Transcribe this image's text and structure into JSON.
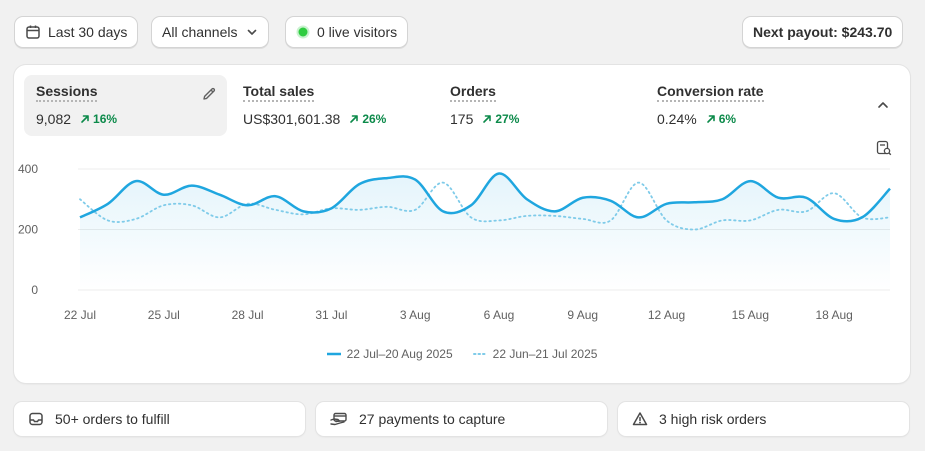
{
  "toolbar": {
    "date_range": "Last 30 days",
    "channels": "All channels",
    "live_visitors": "0 live visitors",
    "payout": "Next payout: $243.70"
  },
  "metrics": [
    {
      "label": "Sessions",
      "value": "9,082",
      "delta": "16%"
    },
    {
      "label": "Total sales",
      "value": "US$301,601.38",
      "delta": "26%"
    },
    {
      "label": "Orders",
      "value": "175",
      "delta": "27%"
    },
    {
      "label": "Conversion rate",
      "value": "0.24%",
      "delta": "6%"
    }
  ],
  "chart_data": {
    "type": "line",
    "y_ticks": [
      0,
      200,
      400
    ],
    "x_ticks": [
      "22 Jul",
      "25 Jul",
      "28 Jul",
      "31 Jul",
      "3 Aug",
      "6 Aug",
      "9 Aug",
      "12 Aug",
      "15 Aug",
      "18 Aug"
    ],
    "ylim": [
      0,
      400
    ],
    "series": [
      {
        "name": "22 Jul–20 Aug 2025",
        "style": "solid",
        "color": "#1fa6df",
        "values": [
          240,
          285,
          360,
          315,
          345,
          315,
          280,
          310,
          260,
          270,
          350,
          370,
          365,
          260,
          280,
          385,
          300,
          260,
          305,
          295,
          240,
          285,
          290,
          300,
          360,
          305,
          305,
          235,
          240,
          335
        ]
      },
      {
        "name": "22 Jun–21 Jul 2025",
        "style": "dotted",
        "color": "#7fcbe9",
        "values": [
          300,
          230,
          235,
          280,
          280,
          240,
          285,
          265,
          250,
          270,
          265,
          275,
          265,
          355,
          240,
          230,
          245,
          245,
          235,
          230,
          355,
          230,
          200,
          230,
          230,
          265,
          260,
          320,
          240,
          240
        ]
      }
    ],
    "grid": true
  },
  "colors": {
    "accent": "#1fa6df",
    "positive": "#0c8a4a",
    "live_dot": "#2ecc40"
  },
  "bottom": [
    {
      "label": "50+ orders to fulfill",
      "icon": "inbox-icon"
    },
    {
      "label": "27 payments to capture",
      "icon": "card-hand-icon"
    },
    {
      "label": "3 high risk orders",
      "icon": "warning-icon"
    }
  ]
}
